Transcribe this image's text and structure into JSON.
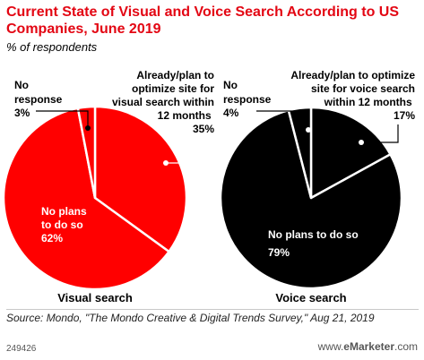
{
  "title": "Current State of Visual and Voice Search According to US Companies, June 2019",
  "subtitle": "% of respondents",
  "source": "Source: Mondo, \"The Mondo Creative & Digital Trends Survey,\" Aug 21, 2019",
  "chart_id": "249426",
  "brand": {
    "prefix": "www.",
    "name": "eMarketer",
    "suffix": ".com"
  },
  "chart_data": [
    {
      "type": "pie",
      "label": "Visual search",
      "color": "#ff0000",
      "slices": [
        {
          "label": "Already/plan to optimize site for visual search within 12 months",
          "value": 35,
          "value_text": "35%"
        },
        {
          "label": "No plans to do so",
          "value": 62,
          "value_text": "62%"
        },
        {
          "label": "No response",
          "value": 3,
          "value_text": "3%"
        }
      ]
    },
    {
      "type": "pie",
      "label": "Voice search",
      "color": "#000000",
      "slices": [
        {
          "label": "Already/plan to optimize site for voice search within 12 months",
          "value": 17,
          "value_text": "17%"
        },
        {
          "label": "No plans to do so",
          "value": 79,
          "value_text": "79%"
        },
        {
          "label": "No response",
          "value": 4,
          "value_text": "4%"
        }
      ]
    }
  ]
}
